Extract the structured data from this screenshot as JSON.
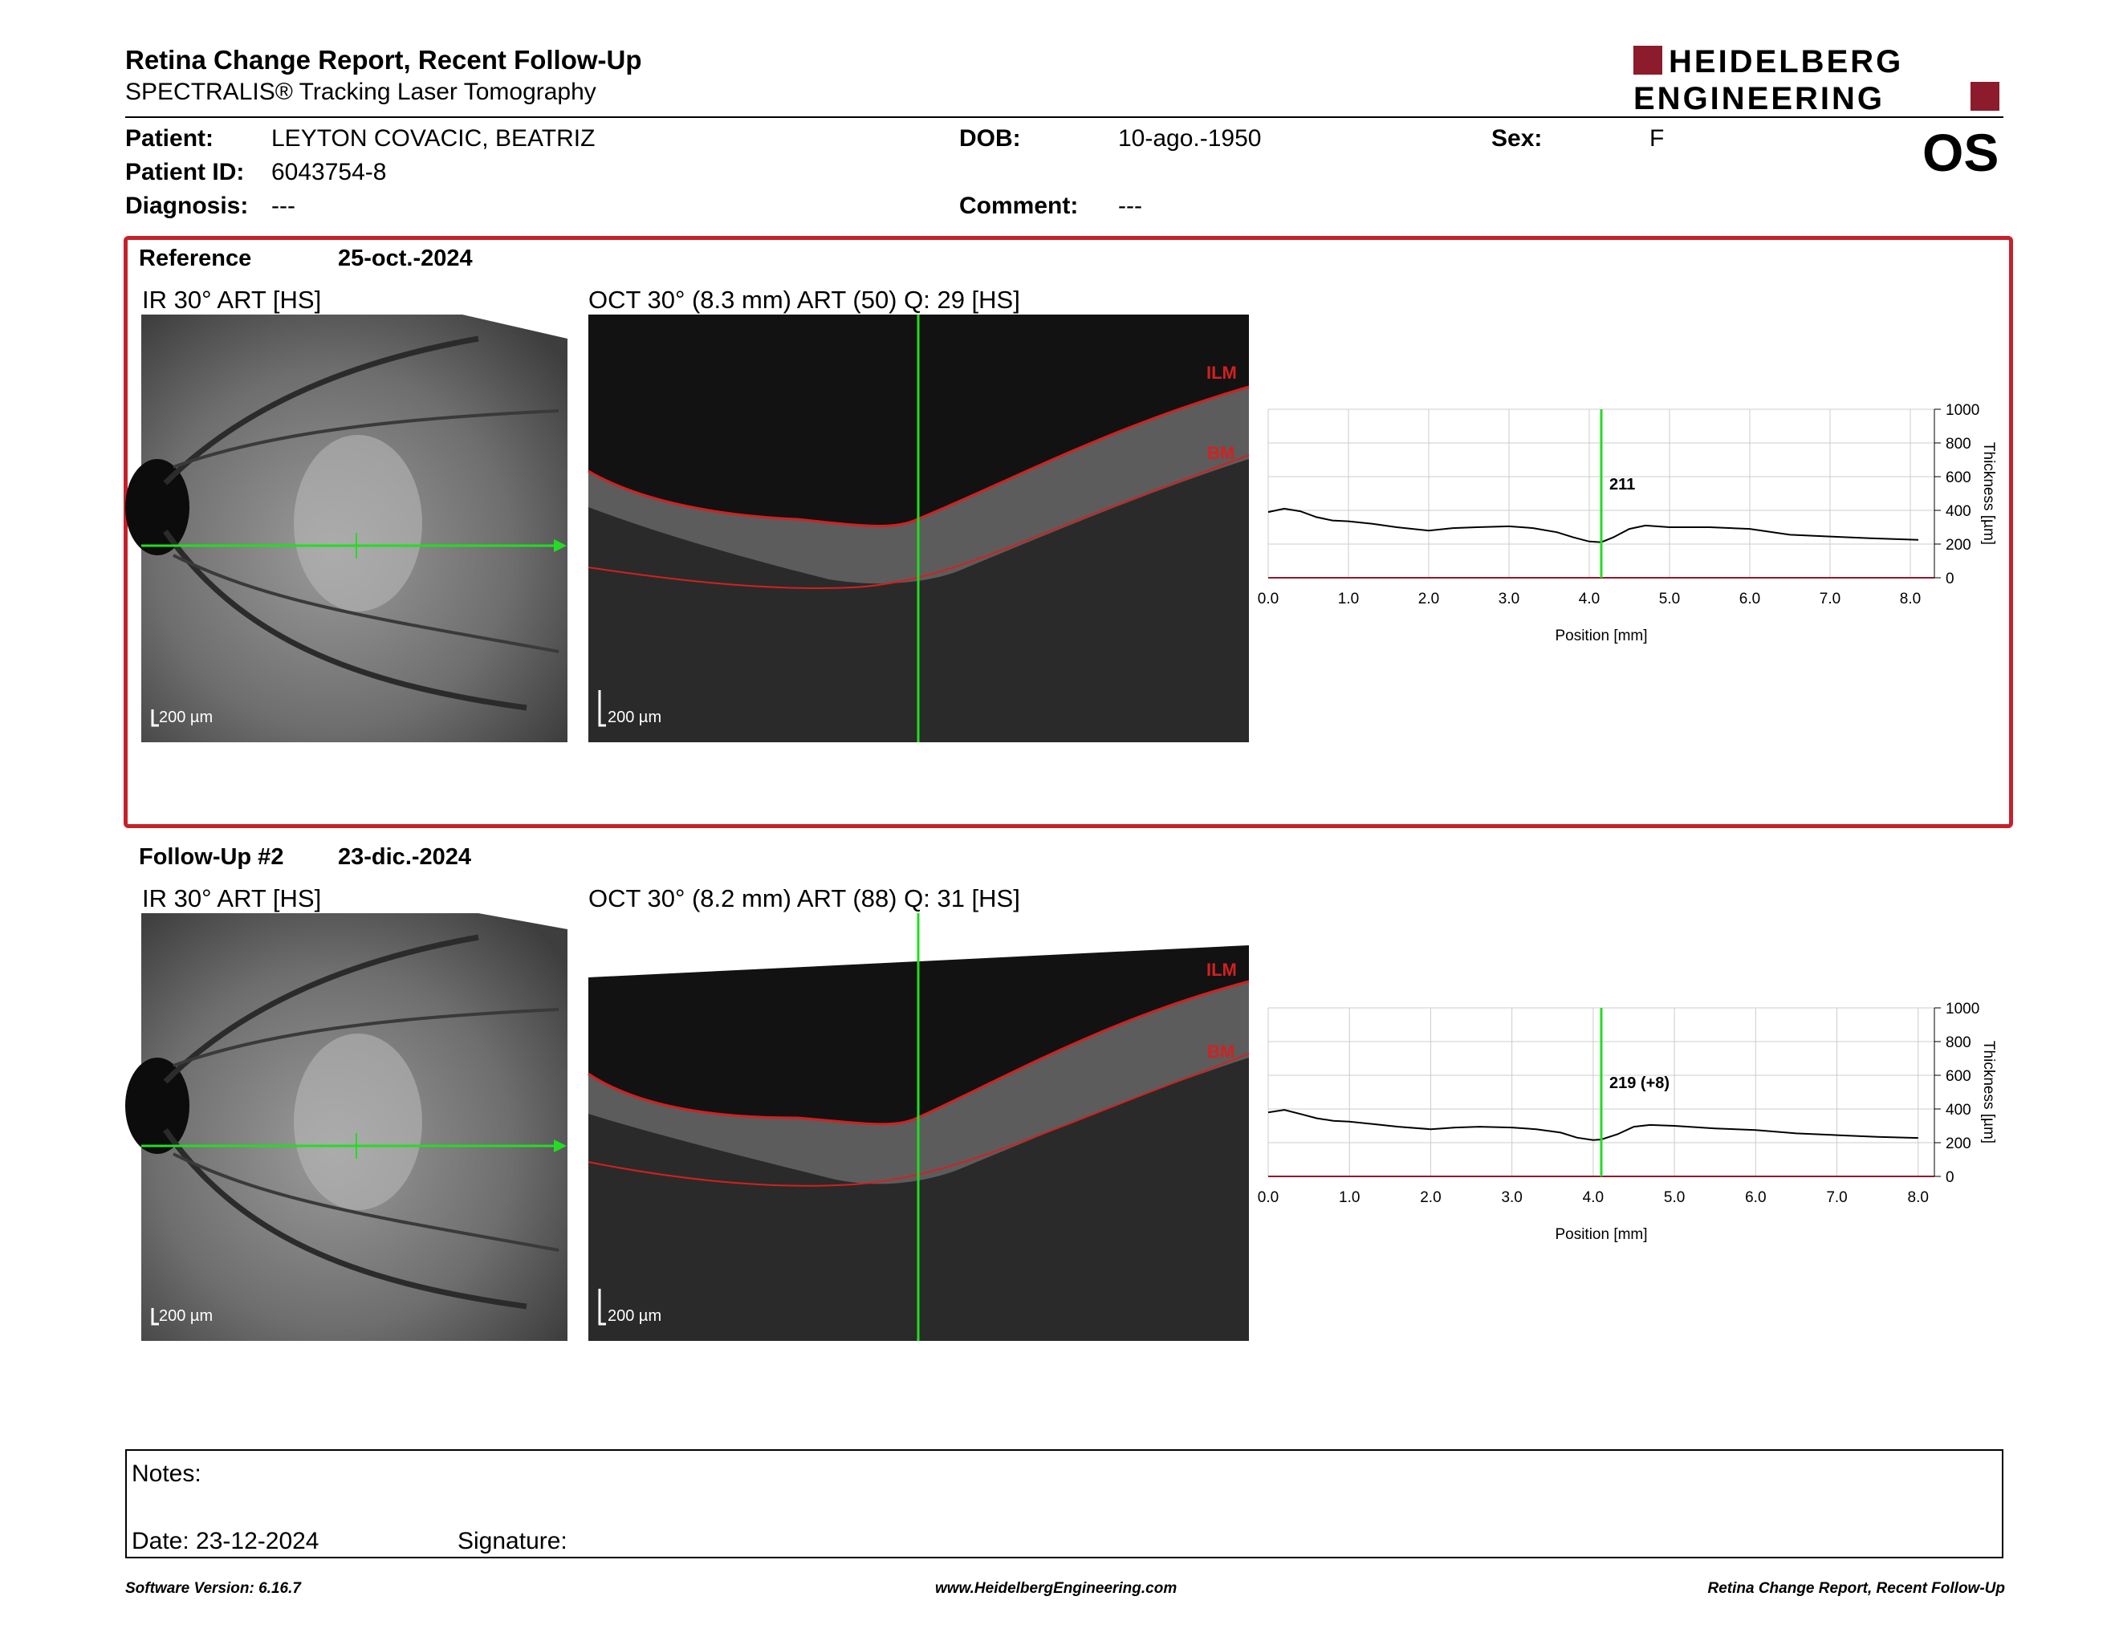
{
  "header": {
    "title": "Retina Change Report, Recent Follow-Up",
    "subtitle": "SPECTRALIS® Tracking Laser Tomography",
    "eye": "OS",
    "brand": {
      "line1": "HEIDELBERG",
      "line2": "ENGINEERING",
      "color": "#8c1b2b"
    }
  },
  "patient": {
    "patient_label": "Patient:",
    "patient_value": "LEYTON COVACIC, BEATRIZ",
    "id_label": "Patient ID:",
    "id_value": "6043754-8",
    "diagnosis_label": "Diagnosis:",
    "diagnosis_value": "---",
    "dob_label": "DOB:",
    "dob_value": "10-ago.-1950",
    "comment_label": "Comment:",
    "comment_value": "---",
    "sex_label": "Sex:",
    "sex_value": "F"
  },
  "reference": {
    "label": "Reference",
    "date": "25-oct.-2024",
    "ir_caption": "IR 30° ART [HS]",
    "oct_caption": "OCT 30° (8.3 mm) ART (50) Q: 29 [HS]",
    "scale_ir": "200 µm",
    "scale_oct": "200 µm",
    "ilm_label": "ILM",
    "bm_label": "BM",
    "marker_value": "211"
  },
  "followup": {
    "label": "Follow-Up #2",
    "date": "23-dic.-2024",
    "ir_caption": "IR 30° ART [HS]",
    "oct_caption": "OCT 30° (8.2 mm) ART (88) Q: 31 [HS]",
    "scale_ir": "200 µm",
    "scale_oct": "200 µm",
    "ilm_label": "ILM",
    "bm_label": "BM",
    "marker_value": "219 (+8)"
  },
  "notes": {
    "notes_label": "Notes:",
    "date_label": "Date: 23-12-2024",
    "signature_label": "Signature:"
  },
  "footer": {
    "left": "Software Version: 6.16.7",
    "center": "www.HeidelbergEngineering.com",
    "right": "Retina Change Report, Recent Follow-Up"
  },
  "colors": {
    "frame": "#c8202a",
    "marker": "#22dd22",
    "layer": "#d42020"
  },
  "chart_data": [
    {
      "type": "line",
      "title": "",
      "xlabel": "Position [mm]",
      "ylabel": "Thickness [µm]",
      "xlim": [
        0,
        8.3
      ],
      "ylim": [
        0,
        1000
      ],
      "x_ticks": [
        "0.0",
        "1.0",
        "2.0",
        "3.0",
        "4.0",
        "5.0",
        "6.0",
        "7.0",
        "8.0"
      ],
      "y_ticks": [
        "0",
        "200",
        "400",
        "600",
        "800",
        "1000"
      ],
      "grid": true,
      "marker_x": 4.15,
      "marker_label": "211",
      "series": [
        {
          "x": [
            0,
            0.2,
            0.4,
            0.6,
            0.8,
            1.0,
            1.3,
            1.6,
            2.0,
            2.3,
            2.6,
            3.0,
            3.3,
            3.6,
            3.8,
            4.0,
            4.15,
            4.3,
            4.5,
            4.7,
            5.0,
            5.5,
            6.0,
            6.5,
            7.0,
            7.5,
            8.1
          ],
          "y": [
            390,
            410,
            395,
            360,
            340,
            335,
            320,
            300,
            280,
            295,
            300,
            305,
            295,
            270,
            240,
            215,
            211,
            240,
            290,
            310,
            300,
            300,
            290,
            255,
            245,
            235,
            225
          ]
        }
      ]
    },
    {
      "type": "line",
      "title": "",
      "xlabel": "Position [mm]",
      "ylabel": "Thickness [µm]",
      "xlim": [
        0,
        8.2
      ],
      "ylim": [
        0,
        1000
      ],
      "x_ticks": [
        "0.0",
        "1.0",
        "2.0",
        "3.0",
        "4.0",
        "5.0",
        "6.0",
        "7.0",
        "8.0"
      ],
      "y_ticks": [
        "0",
        "200",
        "400",
        "600",
        "800",
        "1000"
      ],
      "grid": true,
      "marker_x": 4.1,
      "marker_label": "219 (+8)",
      "series": [
        {
          "x": [
            0,
            0.2,
            0.4,
            0.6,
            0.8,
            1.0,
            1.3,
            1.6,
            2.0,
            2.3,
            2.6,
            3.0,
            3.3,
            3.6,
            3.8,
            4.0,
            4.1,
            4.3,
            4.5,
            4.7,
            5.0,
            5.5,
            6.0,
            6.5,
            7.0,
            7.5,
            8.0
          ],
          "y": [
            380,
            395,
            370,
            345,
            330,
            325,
            310,
            295,
            280,
            290,
            295,
            290,
            280,
            260,
            230,
            215,
            219,
            250,
            295,
            305,
            300,
            285,
            275,
            255,
            245,
            235,
            228
          ]
        }
      ]
    }
  ]
}
